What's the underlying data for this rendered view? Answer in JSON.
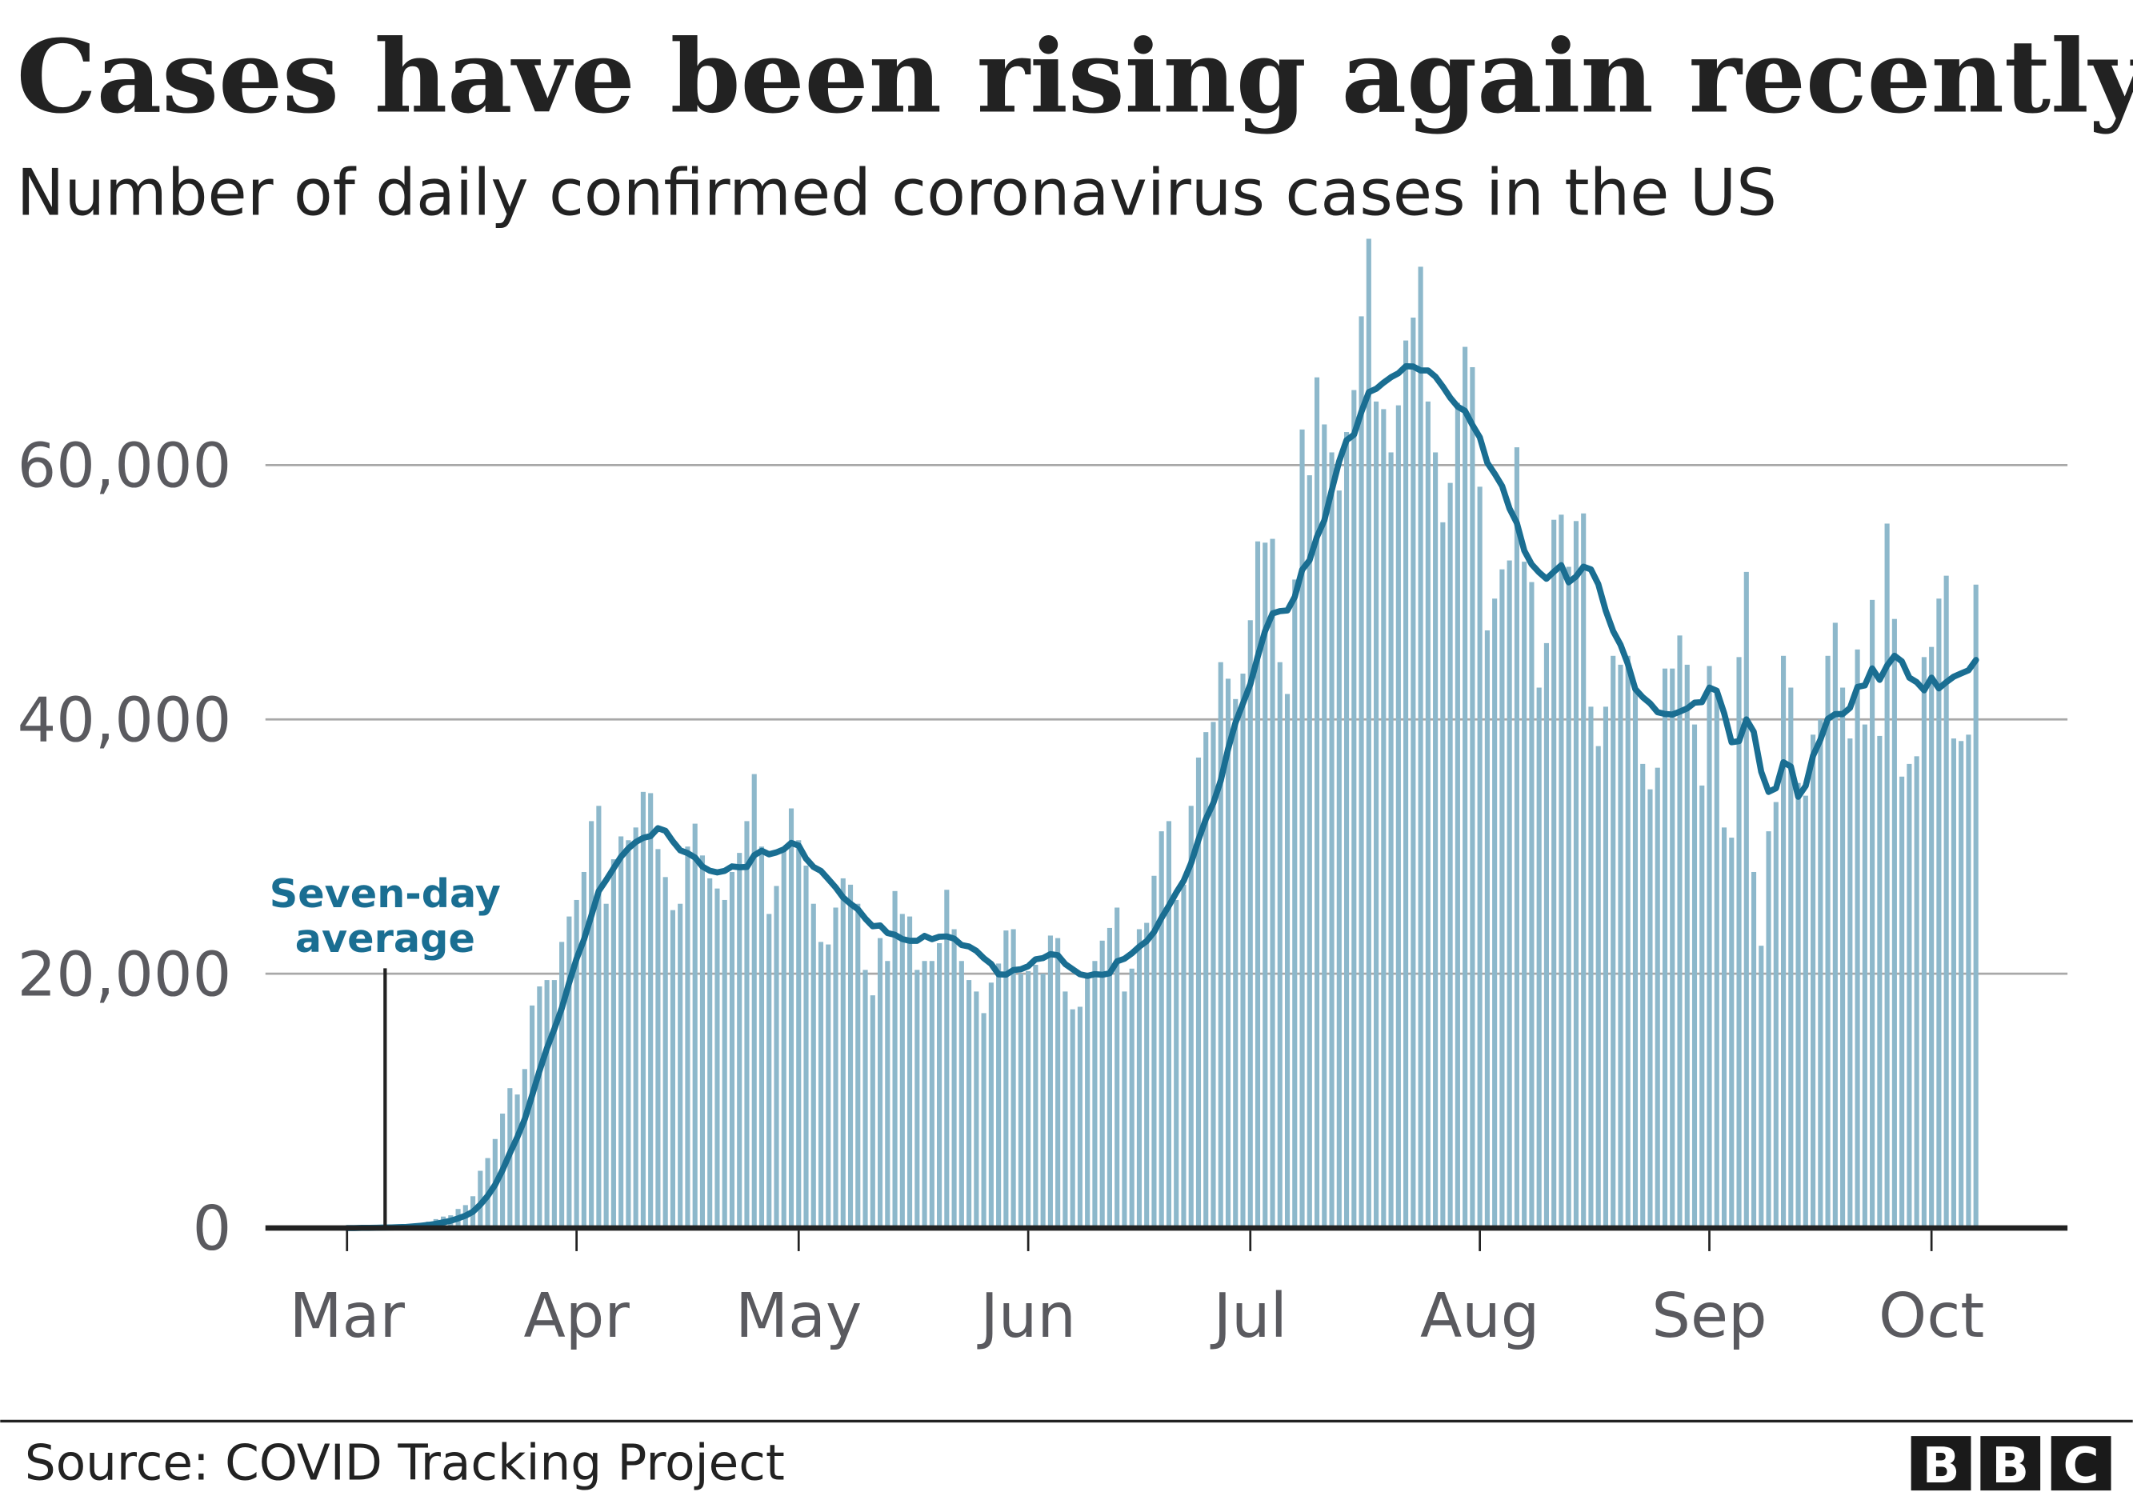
{
  "title": "Cases have been rising again recently",
  "subtitle": "Number of daily confirmed coronavirus cases in the US",
  "source": "Source: COVID Tracking Project",
  "logo": "BBC",
  "colors": {
    "bars": "#8db8cb",
    "average_line": "#1a6e92",
    "grid": "#a8a8a8",
    "axis": "#222222",
    "annotation": "#1a6e92"
  },
  "chart_data": {
    "type": "bar",
    "title": "Cases have been rising again recently",
    "subtitle": "Number of daily confirmed coronavirus cases in the US",
    "xlabel": "",
    "ylabel": "",
    "ylim": [
      0,
      78000
    ],
    "grid": true,
    "y_ticks": [
      {
        "value": 0,
        "label": "0"
      },
      {
        "value": 20000,
        "label": "20,000"
      },
      {
        "value": 40000,
        "label": "40,000"
      },
      {
        "value": 60000,
        "label": "60,000"
      }
    ],
    "x_ticks": [
      "Mar",
      "Apr",
      "May",
      "Jun",
      "Jul",
      "Aug",
      "Sep",
      "Oct"
    ],
    "daily_cases_by_month": {
      "Mar": [
        0,
        0,
        20,
        30,
        50,
        80,
        100,
        150,
        200,
        300,
        400,
        500,
        700,
        900,
        1000,
        1500,
        1800,
        2500,
        4500,
        5500,
        7000,
        9000,
        11000,
        10500,
        12500,
        17500,
        19000,
        19500,
        19500,
        22500,
        24500
      ],
      "Apr": [
        25800,
        28000,
        32000,
        33200,
        25500,
        29000,
        30800,
        30500,
        31500,
        34300,
        34200,
        29800,
        27600,
        25000,
        25500,
        30000,
        31800,
        29300,
        27500,
        26700,
        25800,
        28000,
        29500,
        32000,
        35700,
        30000,
        24700,
        26900,
        29700,
        33000
      ],
      "May": [
        30500,
        28500,
        25500,
        22500,
        22300,
        25200,
        27500,
        27000,
        25500,
        20300,
        18300,
        22800,
        21000,
        26500,
        24700,
        24500,
        20300,
        21000,
        21000,
        22400,
        26600,
        23500,
        21000,
        19500,
        18600,
        16900,
        19300,
        20800,
        23400,
        23500,
        20000
      ],
      "Jun": [
        20200,
        20700,
        20000,
        23000,
        22800,
        18600,
        17200,
        17400,
        19800,
        21000,
        22600,
        23600,
        25200,
        18600,
        20400,
        23500,
        24000,
        27700,
        31200,
        32000,
        25800,
        27000,
        33200,
        37000,
        39000,
        39800,
        44500,
        43200,
        41600,
        43600
      ],
      "Jul": [
        47800,
        54000,
        53900,
        54200,
        44500,
        42000,
        51000,
        62800,
        59200,
        66900,
        63200,
        61000,
        58000,
        62600,
        65900,
        71700,
        77800,
        65000,
        64400,
        61000,
        64700,
        69800,
        71600,
        75600,
        65000,
        61000,
        55500,
        58600,
        64900,
        69300,
        67700
      ],
      "Aug": [
        58300,
        47000,
        49500,
        51800,
        52500,
        61400,
        52400,
        50800,
        42500,
        46000,
        55700,
        56100,
        52000,
        55600,
        56200,
        41000,
        37900,
        41000,
        45000,
        44300,
        45000,
        42500,
        36500,
        34500,
        36200,
        44000,
        44000,
        46600,
        44300,
        39600,
        34800
      ],
      "Sep": [
        44200,
        42300,
        31500,
        30700,
        44900,
        51600,
        28000,
        22200,
        31200,
        33500,
        45000,
        42500,
        35000,
        34000,
        38800,
        40000,
        45000,
        47600,
        42500,
        38500,
        45500,
        39600,
        49400,
        38700,
        55400,
        47900,
        35500,
        36500,
        37100,
        44900
      ],
      "Oct": [
        45700,
        49500,
        51300,
        38500,
        38300,
        38800,
        50600
      ]
    },
    "series": [
      {
        "name": "Daily cases",
        "kind": "bar"
      },
      {
        "name": "Seven-day average",
        "kind": "line",
        "window_days": 7
      }
    ],
    "annotations": [
      {
        "text_line1": "Seven-day",
        "text_line2": "average"
      }
    ]
  }
}
